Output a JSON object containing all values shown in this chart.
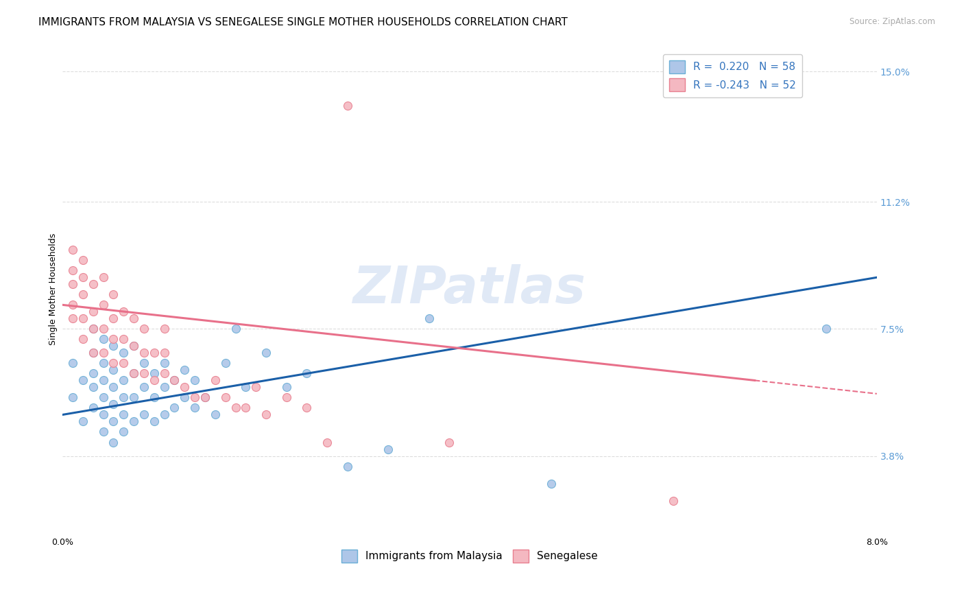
{
  "title": "IMMIGRANTS FROM MALAYSIA VS SENEGALESE SINGLE MOTHER HOUSEHOLDS CORRELATION CHART",
  "source": "Source: ZipAtlas.com",
  "ylabel": "Single Mother Households",
  "xlim": [
    0.0,
    0.08
  ],
  "ylim": [
    0.015,
    0.158
  ],
  "xtick_vals": [
    0.0,
    0.01,
    0.02,
    0.03,
    0.04,
    0.05,
    0.06,
    0.07,
    0.08
  ],
  "xtick_labels": [
    "0.0%",
    "",
    "",
    "",
    "",
    "",
    "",
    "",
    "8.0%"
  ],
  "right_ytick_vals": [
    0.038,
    0.075,
    0.112,
    0.15
  ],
  "right_ytick_labels": [
    "3.8%",
    "7.5%",
    "11.2%",
    "15.0%"
  ],
  "blue_label": "Immigrants from Malaysia",
  "pink_label": "Senegalese",
  "blue_R": "0.220",
  "blue_N": "58",
  "pink_R": "-0.243",
  "pink_N": "52",
  "blue_color": "#aec6e8",
  "blue_edge": "#6aaed6",
  "pink_color": "#f4b8c1",
  "pink_edge": "#e87f8f",
  "blue_line_color": "#1a5fa8",
  "pink_line_color": "#e8708a",
  "watermark": "ZIPatlas",
  "blue_scatter_x": [
    0.001,
    0.001,
    0.002,
    0.002,
    0.003,
    0.003,
    0.003,
    0.003,
    0.003,
    0.004,
    0.004,
    0.004,
    0.004,
    0.004,
    0.004,
    0.005,
    0.005,
    0.005,
    0.005,
    0.005,
    0.005,
    0.006,
    0.006,
    0.006,
    0.006,
    0.006,
    0.007,
    0.007,
    0.007,
    0.007,
    0.008,
    0.008,
    0.008,
    0.009,
    0.009,
    0.009,
    0.01,
    0.01,
    0.01,
    0.011,
    0.011,
    0.012,
    0.012,
    0.013,
    0.013,
    0.014,
    0.015,
    0.016,
    0.017,
    0.018,
    0.02,
    0.022,
    0.024,
    0.028,
    0.032,
    0.036,
    0.048,
    0.075
  ],
  "blue_scatter_y": [
    0.055,
    0.065,
    0.048,
    0.06,
    0.052,
    0.058,
    0.062,
    0.068,
    0.075,
    0.045,
    0.05,
    0.055,
    0.06,
    0.065,
    0.072,
    0.042,
    0.048,
    0.053,
    0.058,
    0.063,
    0.07,
    0.045,
    0.05,
    0.055,
    0.06,
    0.068,
    0.048,
    0.055,
    0.062,
    0.07,
    0.05,
    0.058,
    0.065,
    0.048,
    0.055,
    0.062,
    0.05,
    0.058,
    0.065,
    0.052,
    0.06,
    0.055,
    0.063,
    0.052,
    0.06,
    0.055,
    0.05,
    0.065,
    0.075,
    0.058,
    0.068,
    0.058,
    0.062,
    0.035,
    0.04,
    0.078,
    0.03,
    0.075
  ],
  "pink_scatter_x": [
    0.001,
    0.001,
    0.001,
    0.001,
    0.001,
    0.002,
    0.002,
    0.002,
    0.002,
    0.002,
    0.003,
    0.003,
    0.003,
    0.003,
    0.004,
    0.004,
    0.004,
    0.004,
    0.005,
    0.005,
    0.005,
    0.005,
    0.006,
    0.006,
    0.006,
    0.007,
    0.007,
    0.007,
    0.008,
    0.008,
    0.008,
    0.009,
    0.009,
    0.01,
    0.01,
    0.01,
    0.011,
    0.012,
    0.013,
    0.014,
    0.015,
    0.016,
    0.017,
    0.018,
    0.019,
    0.02,
    0.022,
    0.024,
    0.026,
    0.028,
    0.038,
    0.06
  ],
  "pink_scatter_y": [
    0.078,
    0.082,
    0.088,
    0.092,
    0.098,
    0.072,
    0.078,
    0.085,
    0.09,
    0.095,
    0.068,
    0.075,
    0.08,
    0.088,
    0.068,
    0.075,
    0.082,
    0.09,
    0.065,
    0.072,
    0.078,
    0.085,
    0.065,
    0.072,
    0.08,
    0.062,
    0.07,
    0.078,
    0.062,
    0.068,
    0.075,
    0.06,
    0.068,
    0.062,
    0.068,
    0.075,
    0.06,
    0.058,
    0.055,
    0.055,
    0.06,
    0.055,
    0.052,
    0.052,
    0.058,
    0.05,
    0.055,
    0.052,
    0.042,
    0.14,
    0.042,
    0.025
  ],
  "grid_color": "#dddddd",
  "background_color": "#ffffff",
  "title_fontsize": 11,
  "axis_label_fontsize": 9,
  "tick_fontsize": 9,
  "legend_fontsize": 11
}
